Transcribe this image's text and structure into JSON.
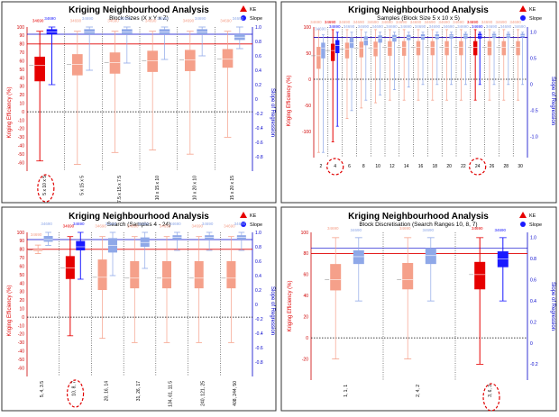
{
  "colors": {
    "ke_dark": "#e60000",
    "ke_light": "#f5a08a",
    "slope_dark": "#1a1aff",
    "slope_light": "#8fa8e8",
    "highlight": "#e00000"
  },
  "chart_data": [
    {
      "type": "box",
      "title": "Kriging Neighbourhood Analysis",
      "subtitle": "Block Sizes (X x Y x Z)",
      "legend": [
        "KE",
        "Slope"
      ],
      "ylabel_left": "Kriging Efficiency (%)",
      "ylabel_right": "Slope of Regression",
      "ylim_left": [
        -70,
        100
      ],
      "ylim_right": [
        -1.0,
        1.0
      ],
      "yticks_left": [
        100,
        90,
        80,
        70,
        60,
        50,
        40,
        30,
        20,
        10,
        0,
        -10,
        -20,
        -30,
        -40,
        -50,
        -60
      ],
      "yticks_right": [
        "1.0",
        "0.8",
        "0.6",
        "0.4",
        "0.2",
        "0",
        "-0.2",
        "-0.4",
        "-0.6",
        "-0.8"
      ],
      "ref_lines_left": [
        80,
        0
      ],
      "ref_lines_right": [
        0.9
      ],
      "categories": [
        "5 x 10 x 5",
        "5 x 15 x 5",
        "7.5 x 15 x 7.5",
        "10 x 15 x 10",
        "10 x 20 x 10",
        "15 x 20 x 15"
      ],
      "highlight_index": 0,
      "count_labels": [
        "34690",
        "34690",
        "34690",
        "34690",
        "34690",
        "34690"
      ],
      "ke": [
        {
          "min": -58,
          "q1": 36,
          "median": 55,
          "q3": 65,
          "max": 95
        },
        {
          "min": -62,
          "q1": 43,
          "median": 56,
          "q3": 68,
          "max": 95
        },
        {
          "min": -48,
          "q1": 45,
          "median": 58,
          "q3": 70,
          "max": 95
        },
        {
          "min": -45,
          "q1": 47,
          "median": 60,
          "q3": 72,
          "max": 95
        },
        {
          "min": -50,
          "q1": 48,
          "median": 61,
          "q3": 73,
          "max": 95
        },
        {
          "min": -30,
          "q1": 52,
          "median": 62,
          "q3": 74,
          "max": 95
        }
      ],
      "slope": [
        {
          "min": 0.2,
          "q1": 0.9,
          "median": 0.93,
          "q3": 0.97,
          "max": 1.0
        },
        {
          "min": 0.4,
          "q1": 0.9,
          "median": 0.93,
          "q3": 0.97,
          "max": 1.0
        },
        {
          "min": 0.5,
          "q1": 0.9,
          "median": 0.93,
          "q3": 0.97,
          "max": 1.0
        },
        {
          "min": 0.55,
          "q1": 0.9,
          "median": 0.93,
          "q3": 0.97,
          "max": 1.0
        },
        {
          "min": 0.6,
          "q1": 0.9,
          "median": 0.93,
          "q3": 0.97,
          "max": 1.0
        },
        {
          "min": 0.7,
          "q1": 0.82,
          "median": 0.86,
          "q3": 0.9,
          "max": 1.0
        }
      ]
    },
    {
      "type": "box",
      "title": "Kriging Neighbourhood Analysis",
      "subtitle": "Samples (Block Size 5 x 10 x 5)",
      "legend": [
        "KE",
        "Slope"
      ],
      "ylabel_left": "Kriging Efficiency (%)",
      "ylabel_right": "Slope of Regression",
      "ylim_left": [
        -150,
        100
      ],
      "ylim_right": [
        -1.4,
        1.1
      ],
      "yticks_left": [
        100,
        50,
        0,
        -50,
        -100
      ],
      "yticks_right": [
        "1.0",
        "0.5",
        "0",
        "-0.5",
        "-1.0"
      ],
      "ref_lines_left": [
        80,
        0
      ],
      "ref_lines_right": [
        0.9
      ],
      "categories": [
        "2",
        "4",
        "6",
        "8",
        "10",
        "12",
        "14",
        "16",
        "18",
        "20",
        "22",
        "24",
        "26",
        "28",
        "30"
      ],
      "highlight_index": [
        1,
        11
      ],
      "count_labels": [
        "34690",
        "34690",
        "34690",
        "34690",
        "34690",
        "34690",
        "34690",
        "34690",
        "34690",
        "34690",
        "34690",
        "34690",
        "34690",
        "34690",
        "34690"
      ],
      "ke": [
        {
          "min": -140,
          "q1": 20,
          "median": 45,
          "q3": 62,
          "max": 95
        },
        {
          "min": -120,
          "q1": 35,
          "median": 55,
          "q3": 68,
          "max": 95
        },
        {
          "min": -75,
          "q1": 40,
          "median": 58,
          "q3": 70,
          "max": 95
        },
        {
          "min": -55,
          "q1": 42,
          "median": 60,
          "q3": 72,
          "max": 95
        },
        {
          "min": -45,
          "q1": 44,
          "median": 60,
          "q3": 72,
          "max": 95
        },
        {
          "min": -40,
          "q1": 45,
          "median": 61,
          "q3": 73,
          "max": 95
        },
        {
          "min": -40,
          "q1": 45,
          "median": 61,
          "q3": 73,
          "max": 95
        },
        {
          "min": -40,
          "q1": 46,
          "median": 61,
          "q3": 73,
          "max": 95
        },
        {
          "min": -40,
          "q1": 46,
          "median": 61,
          "q3": 73,
          "max": 95
        },
        {
          "min": -40,
          "q1": 46,
          "median": 61,
          "q3": 73,
          "max": 95
        },
        {
          "min": -40,
          "q1": 46,
          "median": 61,
          "q3": 73,
          "max": 95
        },
        {
          "min": -40,
          "q1": 46,
          "median": 61,
          "q3": 73,
          "max": 95
        },
        {
          "min": -40,
          "q1": 46,
          "median": 61,
          "q3": 73,
          "max": 95
        },
        {
          "min": -40,
          "q1": 46,
          "median": 61,
          "q3": 73,
          "max": 95
        },
        {
          "min": -40,
          "q1": 46,
          "median": 61,
          "q3": 73,
          "max": 95
        }
      ],
      "slope": [
        {
          "min": -1.3,
          "q1": 0.5,
          "median": 0.7,
          "q3": 0.8,
          "max": 0.95
        },
        {
          "min": -0.8,
          "q1": 0.6,
          "median": 0.75,
          "q3": 0.85,
          "max": 1.0
        },
        {
          "min": -0.5,
          "q1": 0.7,
          "median": 0.8,
          "q3": 0.9,
          "max": 1.0
        },
        {
          "min": -0.3,
          "q1": 0.75,
          "median": 0.85,
          "q3": 0.92,
          "max": 1.0
        },
        {
          "min": -0.2,
          "q1": 0.8,
          "median": 0.88,
          "q3": 0.94,
          "max": 1.0
        },
        {
          "min": -0.1,
          "q1": 0.82,
          "median": 0.9,
          "q3": 0.95,
          "max": 1.0
        },
        {
          "min": -0.05,
          "q1": 0.85,
          "median": 0.9,
          "q3": 0.95,
          "max": 1.0
        },
        {
          "min": 0.0,
          "q1": 0.86,
          "median": 0.92,
          "q3": 0.96,
          "max": 1.0
        },
        {
          "min": 0.0,
          "q1": 0.87,
          "median": 0.92,
          "q3": 0.96,
          "max": 1.0
        },
        {
          "min": 0.0,
          "q1": 0.88,
          "median": 0.93,
          "q3": 0.96,
          "max": 1.0
        },
        {
          "min": 0.0,
          "q1": 0.88,
          "median": 0.93,
          "q3": 0.97,
          "max": 1.0
        },
        {
          "min": 0.0,
          "q1": 0.88,
          "median": 0.93,
          "q3": 0.97,
          "max": 1.0
        },
        {
          "min": 0.0,
          "q1": 0.89,
          "median": 0.93,
          "q3": 0.97,
          "max": 1.0
        },
        {
          "min": 0.0,
          "q1": 0.89,
          "median": 0.93,
          "q3": 0.97,
          "max": 1.0
        },
        {
          "min": 0.0,
          "q1": 0.9,
          "median": 0.94,
          "q3": 0.97,
          "max": 1.0
        }
      ]
    },
    {
      "type": "box",
      "title": "Kriging Neighbourhood Analysis",
      "subtitle": "Search (Samples 4 - 24)",
      "legend": [
        "KE",
        "Slope"
      ],
      "ylabel_left": "Kriging Efficiency (%)",
      "ylabel_right": "Slope of Regression",
      "ylim_left": [
        -70,
        100
      ],
      "ylim_right": [
        -1.0,
        1.0
      ],
      "yticks_left": [
        100,
        90,
        80,
        70,
        60,
        50,
        40,
        30,
        20,
        10,
        0,
        -10,
        -20,
        -30,
        -40,
        -50,
        -60
      ],
      "yticks_right": [
        "1.0",
        "0.8",
        "0.6",
        "0.4",
        "0.2",
        "0",
        "-0.2",
        "-0.4",
        "-0.6",
        "-0.8"
      ],
      "ref_lines_left": [
        80,
        0
      ],
      "ref_lines_right": [
        0.9
      ],
      "categories": [
        "5, 4, 3.5",
        "10, 8, 7",
        "20, 16, 14",
        "31, 26, 17",
        "134, 61, 11.5",
        "240, 121, 25",
        "408, 244, 50"
      ],
      "highlight_index": 1,
      "count_labels": [
        "34690",
        "34690",
        "34690",
        "34690",
        "34690",
        "34690",
        "34690"
      ],
      "ke": [
        {
          "min": 75,
          "q1": 78,
          "median": 79,
          "q3": 80,
          "max": 85
        },
        {
          "min": -22,
          "q1": 45,
          "median": 58,
          "q3": 72,
          "max": 95
        },
        {
          "min": -25,
          "q1": 32,
          "median": 47,
          "q3": 68,
          "max": 95
        },
        {
          "min": -30,
          "q1": 34,
          "median": 46,
          "q3": 66,
          "max": 95
        },
        {
          "min": -30,
          "q1": 34,
          "median": 46,
          "q3": 66,
          "max": 95
        },
        {
          "min": -30,
          "q1": 34,
          "median": 46,
          "q3": 66,
          "max": 95
        },
        {
          "min": -30,
          "q1": 34,
          "median": 46,
          "q3": 66,
          "max": 95
        }
      ],
      "slope": [
        {
          "min": 0.82,
          "q1": 0.87,
          "median": 0.9,
          "q3": 0.95,
          "max": 1.0
        },
        {
          "min": 0.35,
          "q1": 0.75,
          "median": 0.8,
          "q3": 0.88,
          "max": 1.0
        },
        {
          "min": 0.4,
          "q1": 0.72,
          "median": 0.82,
          "q3": 0.92,
          "max": 1.0
        },
        {
          "min": 0.5,
          "q1": 0.8,
          "median": 0.86,
          "q3": 0.93,
          "max": 1.0
        },
        {
          "min": 0.75,
          "q1": 0.9,
          "median": 0.93,
          "q3": 0.96,
          "max": 1.0
        },
        {
          "min": 0.75,
          "q1": 0.9,
          "median": 0.93,
          "q3": 0.96,
          "max": 1.0
        },
        {
          "min": 0.75,
          "q1": 0.9,
          "median": 0.93,
          "q3": 0.96,
          "max": 1.0
        }
      ]
    },
    {
      "type": "box",
      "title": "Kriging Neighbourhood Analysis",
      "subtitle": "Block Discretisation (Search Ranges 10, 8, 7)",
      "legend": [
        "KE",
        "Slope"
      ],
      "ylabel_left": "Kriging Efficiency (%)",
      "ylabel_right": "Slope of Regression",
      "ylim_left": [
        -40,
        100
      ],
      "ylim_right": [
        -0.35,
        1.05
      ],
      "yticks_left": [
        100,
        80,
        60,
        40,
        20,
        0,
        -20
      ],
      "yticks_right": [
        "1.0",
        "0.8",
        "0.6",
        "0.4",
        "0.2",
        "0",
        "-0.2"
      ],
      "ref_lines_left": [
        80,
        0
      ],
      "ref_lines_right": [
        0.9
      ],
      "categories": [
        "1, 1, 1",
        "2, 4, 2",
        "3, 6, 3"
      ],
      "highlight_index": 2,
      "count_labels": [
        "34690",
        "34690",
        "34690"
      ],
      "ke": [
        {
          "min": -20,
          "q1": 45,
          "median": 55,
          "q3": 70,
          "max": 95
        },
        {
          "min": -20,
          "q1": 46,
          "median": 55,
          "q3": 71,
          "max": 95
        },
        {
          "min": -25,
          "q1": 46,
          "median": 60,
          "q3": 72,
          "max": 95
        }
      ],
      "slope": [
        {
          "min": 0.4,
          "q1": 0.75,
          "median": 0.82,
          "q3": 0.88,
          "max": 1.0
        },
        {
          "min": 0.4,
          "q1": 0.75,
          "median": 0.83,
          "q3": 0.9,
          "max": 1.0
        },
        {
          "min": 0.4,
          "q1": 0.72,
          "median": 0.8,
          "q3": 0.87,
          "max": 1.0
        }
      ]
    }
  ]
}
